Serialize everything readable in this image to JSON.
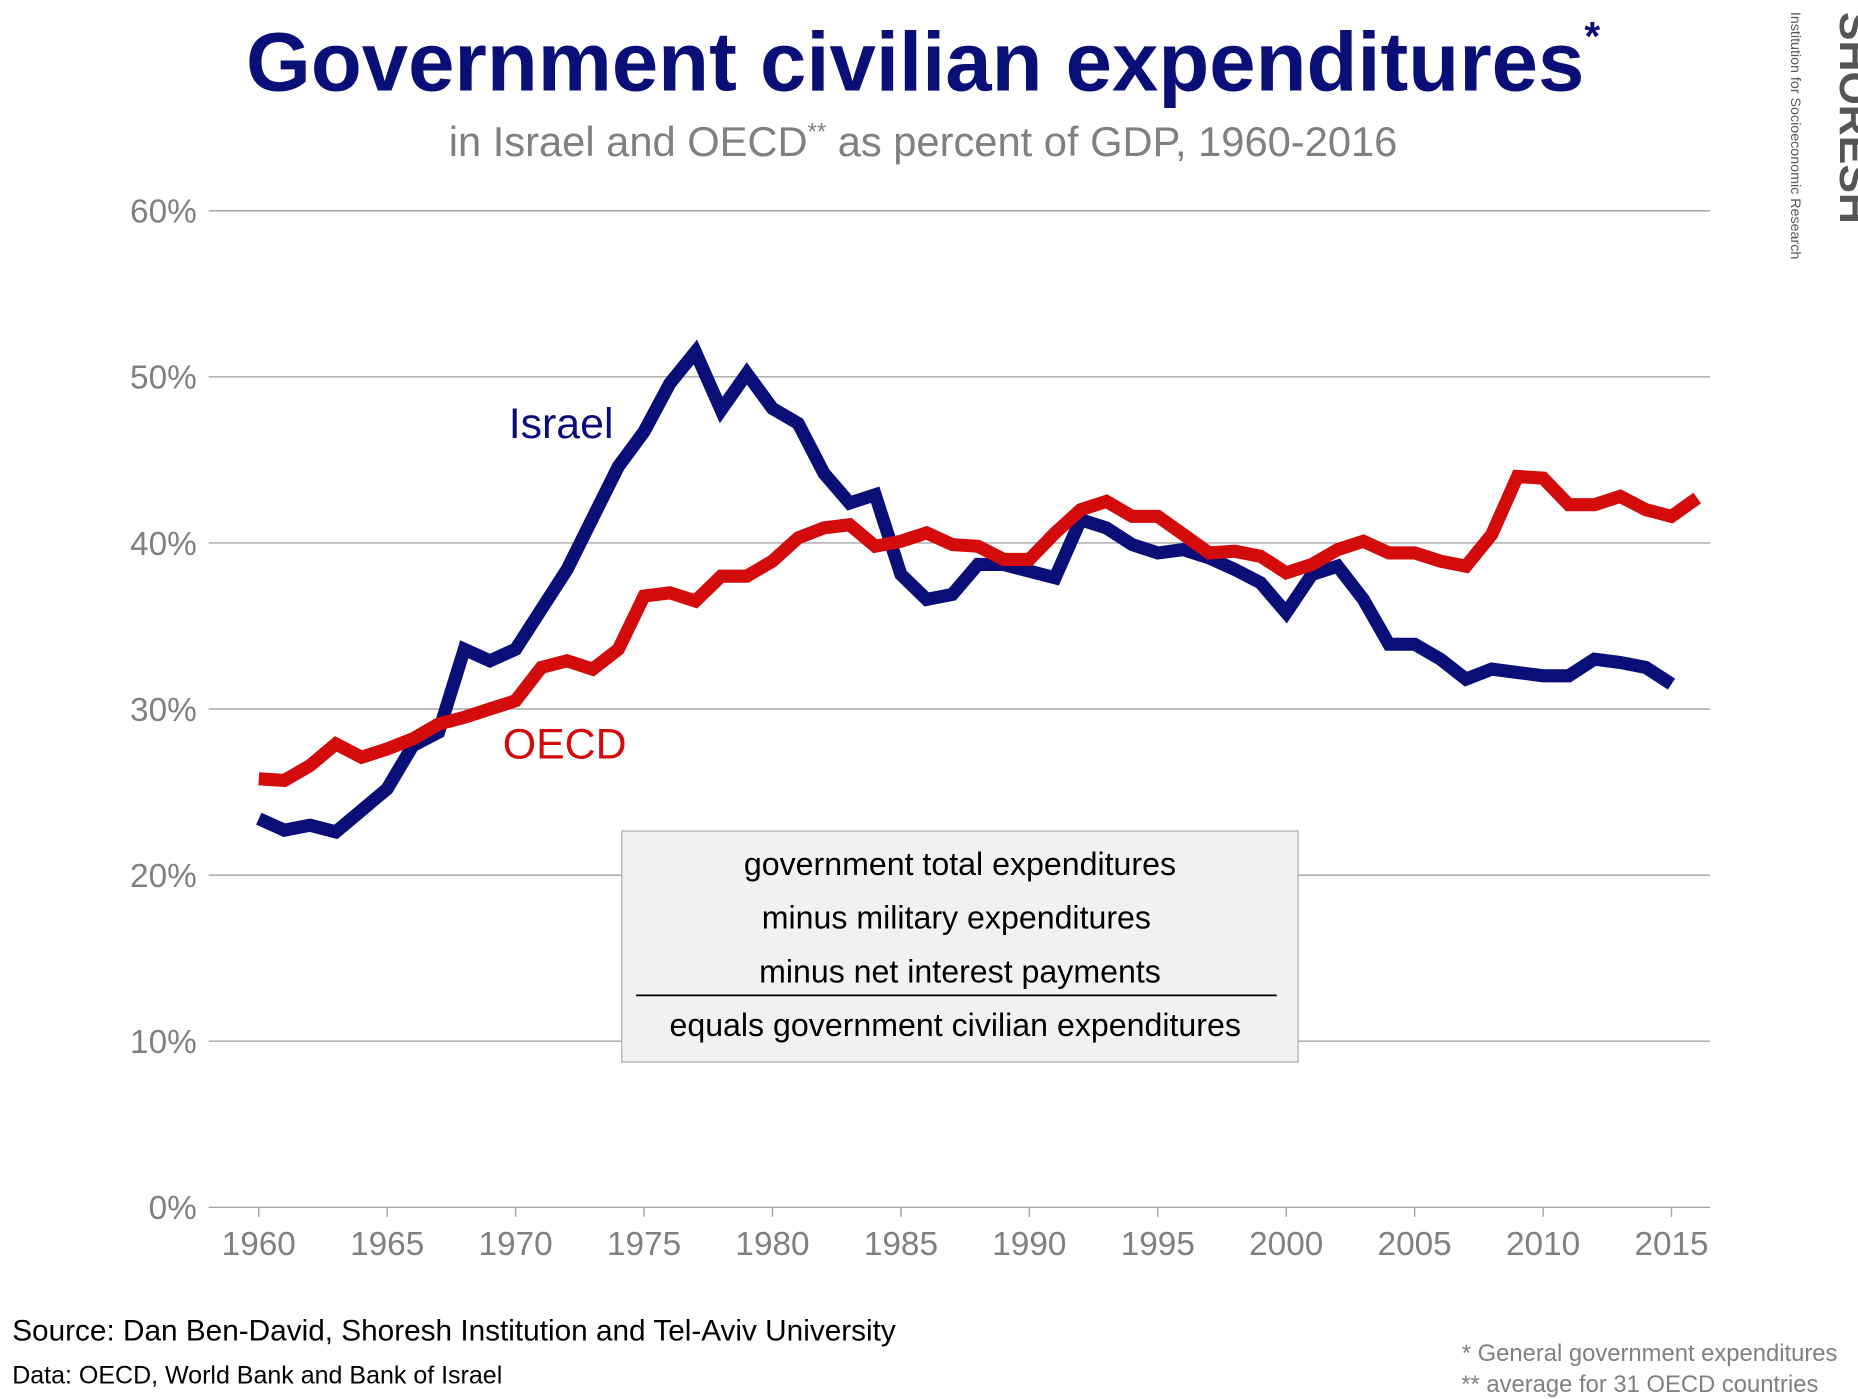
{
  "chart_data": {
    "type": "line",
    "title": "Government civilian expenditures",
    "title_mark": "*",
    "subtitle": {
      "before": "in Israel and OECD",
      "mark": "**",
      "after": " as percent of GDP, 1960-2016"
    },
    "x": [
      1960,
      1961,
      1962,
      1963,
      1964,
      1965,
      1966,
      1967,
      1968,
      1969,
      1970,
      1971,
      1972,
      1973,
      1974,
      1975,
      1976,
      1977,
      1978,
      1979,
      1980,
      1981,
      1982,
      1983,
      1984,
      1985,
      1986,
      1987,
      1988,
      1989,
      1990,
      1991,
      1992,
      1993,
      1994,
      1995,
      1996,
      1997,
      1998,
      1999,
      2000,
      2001,
      2002,
      2003,
      2004,
      2005,
      2006,
      2007,
      2008,
      2009,
      2010,
      2011,
      2012,
      2013,
      2014,
      2015,
      2016
    ],
    "series": [
      {
        "name": "Israel",
        "color": "#0a0f78",
        "values": [
          23.4,
          22.7,
          23.0,
          22.6,
          23.9,
          25.2,
          27.8,
          28.6,
          33.6,
          32.9,
          33.6,
          36.0,
          38.4,
          41.5,
          44.6,
          46.7,
          49.6,
          51.5,
          48.0,
          50.2,
          48.1,
          47.2,
          44.2,
          42.4,
          42.9,
          38.1,
          36.6,
          36.9,
          38.7,
          38.7,
          38.3,
          37.9,
          41.4,
          40.9,
          39.9,
          39.4,
          39.6,
          39.1,
          38.4,
          37.6,
          35.8,
          38.1,
          38.6,
          36.6,
          33.9,
          33.9,
          33.0,
          31.8,
          32.4,
          32.2,
          32.0,
          32.0,
          33.0,
          32.8,
          32.5,
          31.5,
          null
        ]
      },
      {
        "name": "OECD",
        "color": "#d40b0b",
        "values": [
          25.8,
          25.7,
          26.6,
          27.9,
          27.1,
          27.6,
          28.2,
          29.1,
          29.5,
          30.0,
          30.5,
          32.5,
          32.9,
          32.4,
          33.6,
          36.8,
          37.0,
          36.5,
          38.0,
          38.0,
          38.9,
          40.3,
          40.9,
          41.1,
          39.8,
          40.1,
          40.6,
          39.9,
          39.8,
          39.0,
          39.0,
          40.6,
          42.0,
          42.5,
          41.6,
          41.6,
          40.5,
          39.4,
          39.5,
          39.2,
          38.2,
          38.7,
          39.6,
          40.1,
          39.4,
          39.4,
          38.9,
          38.6,
          40.5,
          44.0,
          43.9,
          42.3,
          42.3,
          42.8,
          42.0,
          41.6,
          42.7
        ]
      }
    ],
    "xlim": [
      1958.05,
      2016.5
    ],
    "xticks": [
      1960,
      1965,
      1970,
      1975,
      1980,
      1985,
      1990,
      1995,
      2000,
      2005,
      2010,
      2015
    ],
    "ylim": [
      0,
      60
    ],
    "yticks": [
      {
        "value": 0,
        "label": "0%"
      },
      {
        "value": 10,
        "label": "10%"
      },
      {
        "value": 20,
        "label": "20%"
      },
      {
        "value": 30,
        "label": "30%"
      },
      {
        "value": 40,
        "label": "40%"
      },
      {
        "value": 50,
        "label": "50%"
      },
      {
        "value": 60,
        "label": "60%"
      }
    ],
    "grid": true,
    "definition": [
      "government total expenditures",
      "minus military expenditures",
      "minus net interest payments",
      "equals government civilian expenditures"
    ],
    "source": "Source: Dan Ben-David, Shoresh Institution and Tel-Aviv University",
    "data_note": "Data: OECD, World Bank and Bank of Israel",
    "footnotes": [
      "* General government expenditures",
      "** average for 31 OECD countries"
    ],
    "logo": {
      "name": "SHORESH",
      "tagline": "Institution for Socioeconomic Research"
    }
  }
}
